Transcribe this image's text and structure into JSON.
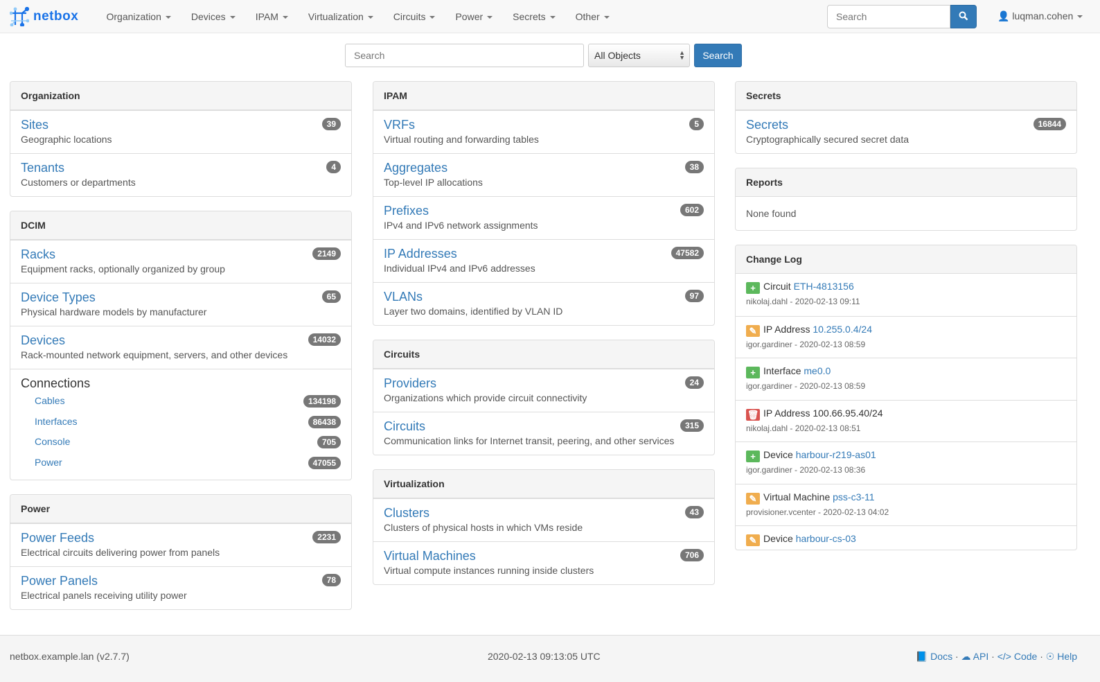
{
  "nav": {
    "brand": "netbox",
    "menu": [
      "Organization",
      "Devices",
      "IPAM",
      "Virtualization",
      "Circuits",
      "Power",
      "Secrets",
      "Other"
    ],
    "search_placeholder": "Search",
    "user": "luqman.cohen"
  },
  "search": {
    "placeholder": "Search",
    "select_value": "All Objects",
    "button": "Search"
  },
  "columns": [
    [
      {
        "title": "Organization",
        "rows": [
          {
            "t": "Sites",
            "d": "Geographic locations",
            "c": "39"
          },
          {
            "t": "Tenants",
            "d": "Customers or departments",
            "c": "4"
          }
        ]
      },
      {
        "title": "DCIM",
        "rows": [
          {
            "t": "Racks",
            "d": "Equipment racks, optionally organized by group",
            "c": "2149"
          },
          {
            "t": "Device Types",
            "d": "Physical hardware models by manufacturer",
            "c": "65"
          },
          {
            "t": "Devices",
            "d": "Rack-mounted network equipment, servers, and other devices",
            "c": "14032"
          }
        ],
        "connections": {
          "title": "Connections",
          "items": [
            {
              "t": "Cables",
              "c": "134198"
            },
            {
              "t": "Interfaces",
              "c": "86438"
            },
            {
              "t": "Console",
              "c": "705"
            },
            {
              "t": "Power",
              "c": "47055"
            }
          ]
        }
      },
      {
        "title": "Power",
        "rows": [
          {
            "t": "Power Feeds",
            "d": "Electrical circuits delivering power from panels",
            "c": "2231"
          },
          {
            "t": "Power Panels",
            "d": "Electrical panels receiving utility power",
            "c": "78"
          }
        ]
      }
    ],
    [
      {
        "title": "IPAM",
        "rows": [
          {
            "t": "VRFs",
            "d": "Virtual routing and forwarding tables",
            "c": "5"
          },
          {
            "t": "Aggregates",
            "d": "Top-level IP allocations",
            "c": "38"
          },
          {
            "t": "Prefixes",
            "d": "IPv4 and IPv6 network assignments",
            "c": "602"
          },
          {
            "t": "IP Addresses",
            "d": "Individual IPv4 and IPv6 addresses",
            "c": "47582"
          },
          {
            "t": "VLANs",
            "d": "Layer two domains, identified by VLAN ID",
            "c": "97"
          }
        ]
      },
      {
        "title": "Circuits",
        "rows": [
          {
            "t": "Providers",
            "d": "Organizations which provide circuit connectivity",
            "c": "24"
          },
          {
            "t": "Circuits",
            "d": "Communication links for Internet transit, peering, and other services",
            "c": "315"
          }
        ]
      },
      {
        "title": "Virtualization",
        "rows": [
          {
            "t": "Clusters",
            "d": "Clusters of physical hosts in which VMs reside",
            "c": "43"
          },
          {
            "t": "Virtual Machines",
            "d": "Virtual compute instances running inside clusters",
            "c": "706"
          }
        ]
      }
    ],
    [
      {
        "title": "Secrets",
        "rows": [
          {
            "t": "Secrets",
            "d": "Cryptographically secured secret data",
            "c": "16844"
          }
        ]
      },
      {
        "title": "Reports",
        "none": "None found"
      },
      {
        "title": "Change Log",
        "changelog": [
          {
            "action": "create",
            "type": "Circuit",
            "obj": "ETH-4813156",
            "link": true,
            "meta": "nikolaj.dahl - 2020-02-13 09:11"
          },
          {
            "action": "update",
            "type": "IP Address",
            "obj": "10.255.0.4/24",
            "link": true,
            "meta": "igor.gardiner - 2020-02-13 08:59"
          },
          {
            "action": "create",
            "type": "Interface",
            "obj": "me0.0",
            "link": true,
            "meta": "igor.gardiner - 2020-02-13 08:59"
          },
          {
            "action": "delete",
            "type": "IP Address",
            "obj": "100.66.95.40/24",
            "link": false,
            "meta": "nikolaj.dahl - 2020-02-13 08:51"
          },
          {
            "action": "create",
            "type": "Device",
            "obj": "harbour-r219-as01",
            "link": true,
            "meta": "igor.gardiner - 2020-02-13 08:36"
          },
          {
            "action": "update",
            "type": "Virtual Machine",
            "obj": "pss-c3-11",
            "link": true,
            "meta": "provisioner.vcenter - 2020-02-13 04:02"
          },
          {
            "action": "update",
            "type": "Device",
            "obj": "harbour-cs-03",
            "link": true,
            "meta": ""
          }
        ]
      }
    ]
  ],
  "action_colors": {
    "create": "#5cb85c",
    "update": "#f0ad4e",
    "delete": "#d9534f"
  },
  "footer": {
    "host": "netbox.example.lan (v2.7.7)",
    "time": "2020-02-13 09:13:05 UTC",
    "links": [
      "Docs",
      "API",
      "Code",
      "Help"
    ],
    "sep": "·"
  }
}
